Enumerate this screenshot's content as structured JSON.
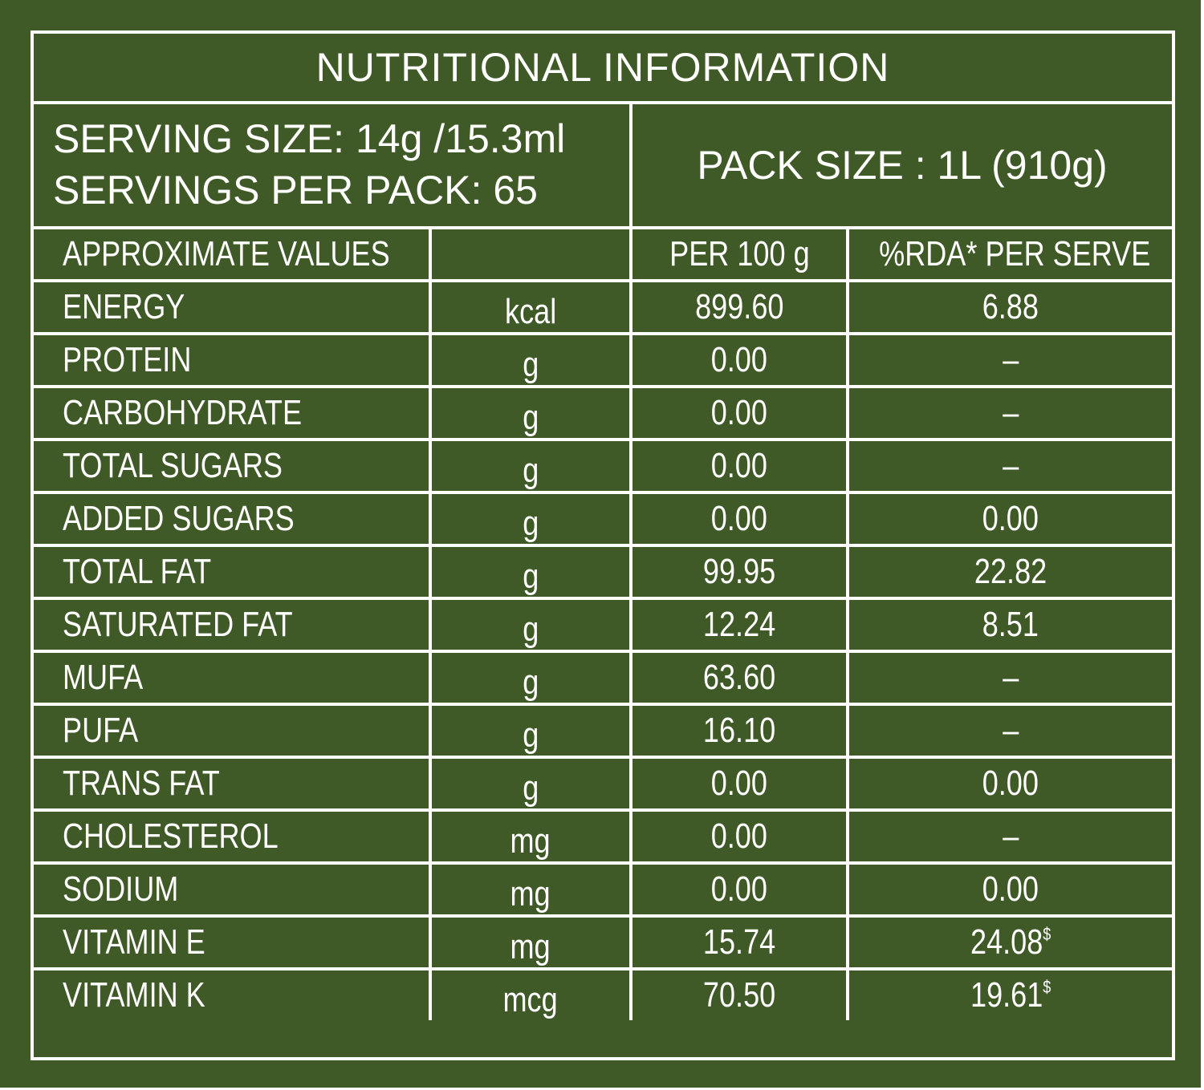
{
  "title": "NUTRITIONAL INFORMATION",
  "serving": {
    "size_line": "SERVING SIZE: 14g /15.3ml",
    "servings_line": "SERVINGS PER PACK: 65"
  },
  "pack_size": "PACK SIZE : 1L (910g)",
  "header": {
    "label": "APPROXIMATE VALUES",
    "unit": "",
    "per": "PER 100 g",
    "rda": "%RDA* PER SERVE"
  },
  "rows": [
    {
      "name": "ENERGY",
      "unit": "kcal",
      "per": "899.60",
      "rda": "6.88",
      "mark": ""
    },
    {
      "name": "PROTEIN",
      "unit": "g",
      "per": "0.00",
      "rda": "–",
      "mark": ""
    },
    {
      "name": "CARBOHYDRATE",
      "unit": "g",
      "per": "0.00",
      "rda": "–",
      "mark": ""
    },
    {
      "name": "TOTAL SUGARS",
      "unit": "g",
      "per": "0.00",
      "rda": "–",
      "mark": ""
    },
    {
      "name": "ADDED SUGARS",
      "unit": "g",
      "per": "0.00",
      "rda": "0.00",
      "mark": ""
    },
    {
      "name": "TOTAL FAT",
      "unit": "g",
      "per": "99.95",
      "rda": "22.82",
      "mark": ""
    },
    {
      "name": "SATURATED FAT",
      "unit": "g",
      "per": "12.24",
      "rda": "8.51",
      "mark": ""
    },
    {
      "name": "MUFA",
      "unit": "g",
      "per": "63.60",
      "rda": "–",
      "mark": ""
    },
    {
      "name": "PUFA",
      "unit": "g",
      "per": "16.10",
      "rda": "–",
      "mark": ""
    },
    {
      "name": "TRANS FAT",
      "unit": "g",
      "per": "0.00",
      "rda": "0.00",
      "mark": ""
    },
    {
      "name": "CHOLESTEROL",
      "unit": "mg",
      "per": "0.00",
      "rda": "–",
      "mark": ""
    },
    {
      "name": "SODIUM",
      "unit": "mg",
      "per": "0.00",
      "rda": "0.00",
      "mark": ""
    },
    {
      "name": "VITAMIN E",
      "unit": "mg",
      "per": "15.74",
      "rda": "24.08",
      "mark": "$"
    },
    {
      "name": "VITAMIN K",
      "unit": "mcg",
      "per": "70.50",
      "rda": "19.61",
      "mark": "$"
    }
  ],
  "colors": {
    "background": "#405a27",
    "text": "#ffffff",
    "rules": "#ffffff"
  }
}
